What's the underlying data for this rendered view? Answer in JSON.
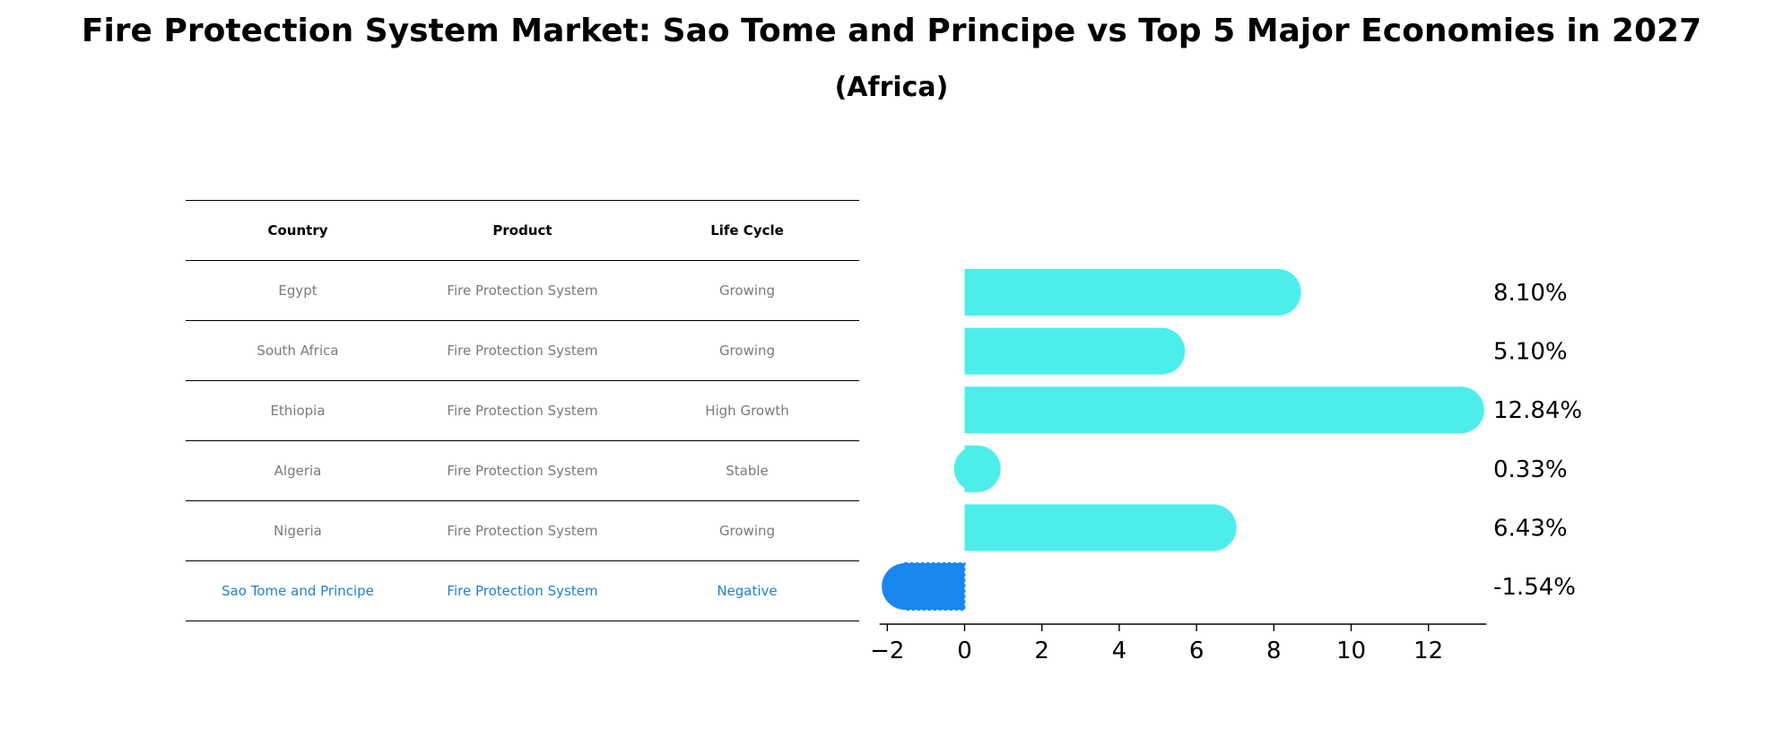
{
  "header": {
    "title": "Fire Protection System Market: Sao Tome and Principe vs Top 5 Major Economies in 2027",
    "subtitle": "(Africa)"
  },
  "table": {
    "columns": [
      "Country",
      "Product",
      "Life Cycle"
    ],
    "rows": [
      {
        "country": "Egypt",
        "product": "Fire Protection System",
        "life_cycle": "Growing"
      },
      {
        "country": "South Africa",
        "product": "Fire Protection System",
        "life_cycle": "Growing"
      },
      {
        "country": "Ethiopia",
        "product": "Fire Protection System",
        "life_cycle": "High Growth"
      },
      {
        "country": "Algeria",
        "product": "Fire Protection System",
        "life_cycle": "Stable"
      },
      {
        "country": "Nigeria",
        "product": "Fire Protection System",
        "life_cycle": "Growing"
      },
      {
        "country": "Sao Tome and Principe",
        "product": "Fire Protection System",
        "life_cycle": "Negative"
      }
    ]
  },
  "colors": {
    "bar": "#4deeea",
    "highlight_bar": "#1a87f0",
    "highlight_text": "#1f7fd0",
    "muted_text": "#7a7a7a"
  },
  "chart_data": {
    "type": "bar",
    "orientation": "horizontal",
    "title": "Fire Protection System Market: Sao Tome and Principe vs Top 5 Major Economies in 2027",
    "subtitle": "(Africa)",
    "categories": [
      "Egypt",
      "South Africa",
      "Ethiopia",
      "Algeria",
      "Nigeria",
      "Sao Tome and Principe"
    ],
    "values": [
      8.1,
      5.1,
      12.84,
      0.33,
      6.43,
      -1.54
    ],
    "value_labels": [
      "8.10%",
      "5.10%",
      "12.84%",
      "0.33%",
      "6.43%",
      "-1.54%"
    ],
    "highlight": "Sao Tome and Principe",
    "xlim": [
      -2.2,
      13.5
    ],
    "xticks": [
      -2,
      0,
      2,
      4,
      6,
      8,
      10,
      12
    ],
    "xtick_labels": [
      "−2",
      "0",
      "2",
      "4",
      "6",
      "8",
      "10",
      "12"
    ],
    "xlabel": "",
    "ylabel": "",
    "grid": false
  }
}
